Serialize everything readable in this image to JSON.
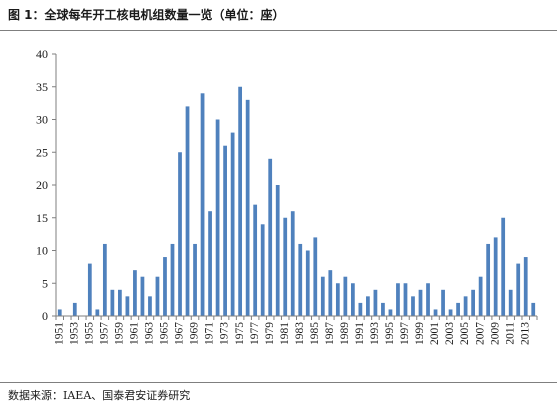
{
  "header": {
    "title": "图 1：全球每年开工核电机组数量一览（单位：座）"
  },
  "footer": {
    "source": "数据来源：IAEA、国泰君安证券研究"
  },
  "chart_data": {
    "type": "bar",
    "title": "图 1：全球每年开工核电机组数量一览（单位：座）",
    "xlabel": "",
    "ylabel": "",
    "ylim": [
      0,
      40
    ],
    "yticks": [
      0,
      5,
      10,
      15,
      20,
      25,
      30,
      35,
      40
    ],
    "grid": false,
    "legend": "none",
    "bar_color": "#4f81bd",
    "categories": [
      "1951",
      "1952",
      "1953",
      "1954",
      "1955",
      "1956",
      "1957",
      "1958",
      "1959",
      "1960",
      "1961",
      "1962",
      "1963",
      "1964",
      "1965",
      "1966",
      "1967",
      "1968",
      "1969",
      "1970",
      "1971",
      "1972",
      "1973",
      "1974",
      "1975",
      "1976",
      "1977",
      "1978",
      "1979",
      "1980",
      "1981",
      "1982",
      "1983",
      "1984",
      "1985",
      "1986",
      "1987",
      "1988",
      "1989",
      "1990",
      "1991",
      "1992",
      "1993",
      "1994",
      "1995",
      "1996",
      "1997",
      "1998",
      "1999",
      "2000",
      "2001",
      "2002",
      "2003",
      "2004",
      "2005",
      "2006",
      "2007",
      "2008",
      "2009",
      "2010",
      "2011",
      "2012",
      "2013",
      "2014"
    ],
    "tick_labels": [
      "1951",
      "1953",
      "1955",
      "1957",
      "1959",
      "1961",
      "1963",
      "1965",
      "1967",
      "1969",
      "1971",
      "1973",
      "1975",
      "1977",
      "1979",
      "1981",
      "1983",
      "1985",
      "1987",
      "1989",
      "1991",
      "1993",
      "1995",
      "1997",
      "1999",
      "2001",
      "2003",
      "2005",
      "2007",
      "2009",
      "2011",
      "2013"
    ],
    "values": [
      1,
      0,
      2,
      0,
      8,
      1,
      11,
      4,
      4,
      3,
      7,
      6,
      3,
      6,
      9,
      11,
      25,
      32,
      11,
      34,
      16,
      30,
      26,
      28,
      35,
      33,
      17,
      14,
      24,
      20,
      15,
      16,
      11,
      10,
      12,
      6,
      7,
      5,
      6,
      5,
      2,
      3,
      4,
      2,
      1,
      5,
      5,
      3,
      4,
      5,
      1,
      4,
      1,
      2,
      3,
      4,
      6,
      11,
      12,
      15,
      4,
      8,
      9,
      2
    ]
  }
}
